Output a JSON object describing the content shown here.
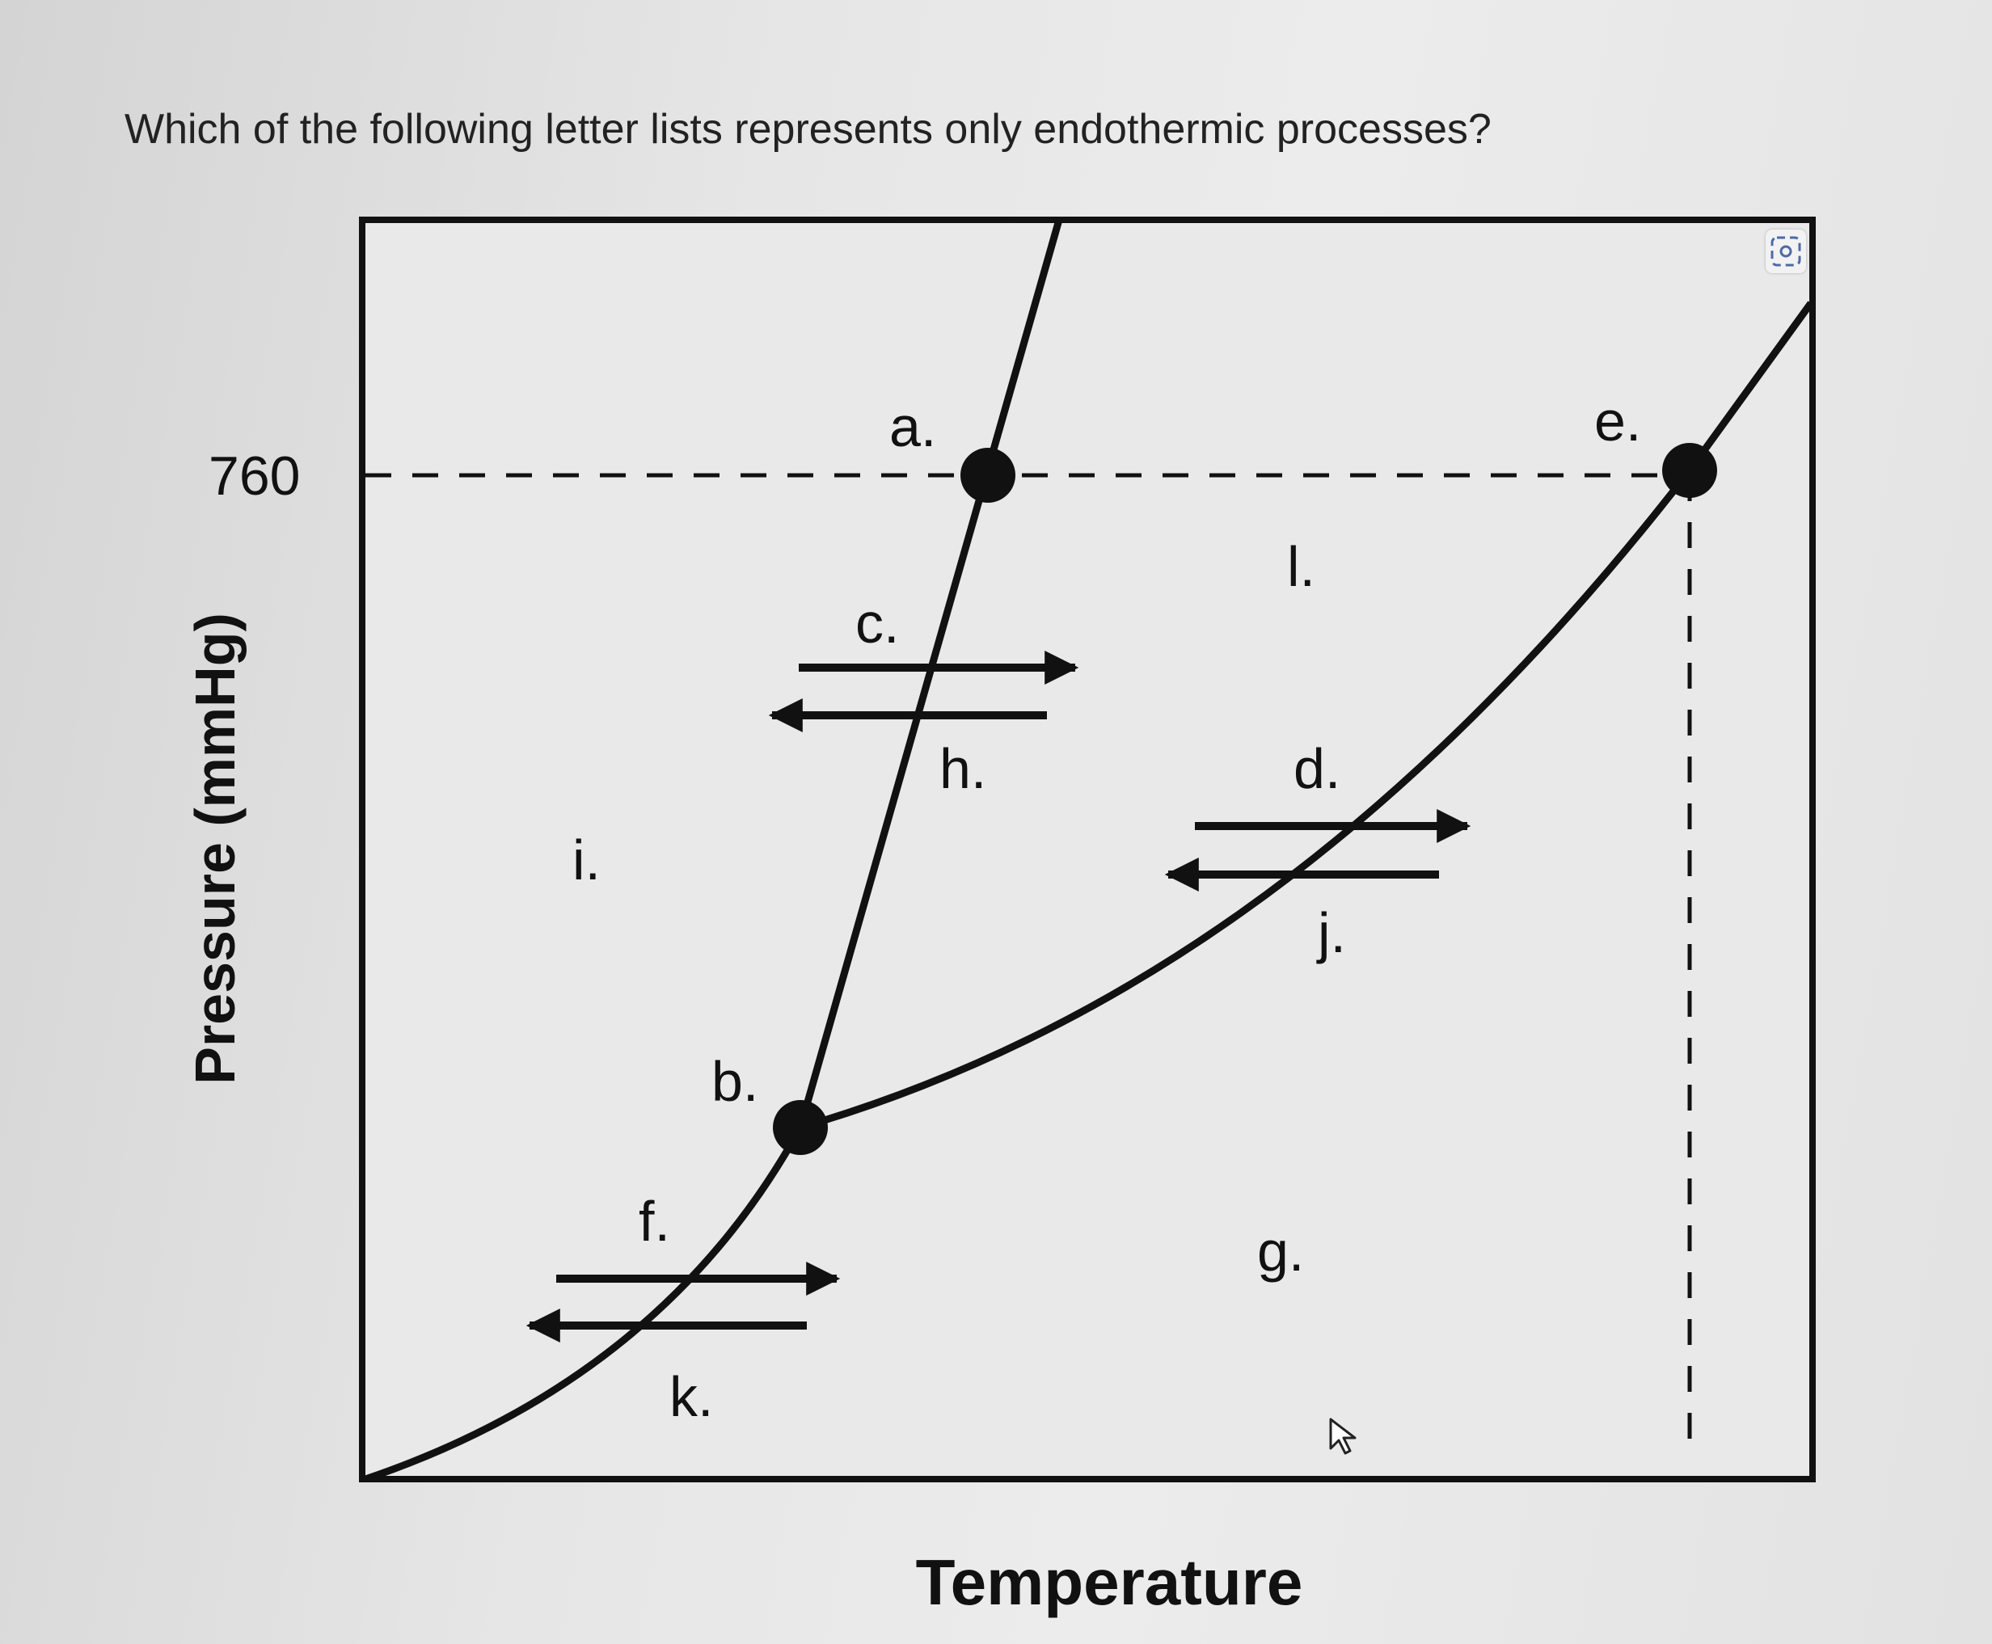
{
  "question": {
    "text": "Which of the following letter lists represents only endothermic processes?"
  },
  "diagram": {
    "y_axis_label": "Pressure (mmHg)",
    "x_axis_label": "Temperature",
    "y_tick_label": "760",
    "labels": {
      "a": "a.",
      "b": "b.",
      "c": "c.",
      "d": "d.",
      "e": "e.",
      "f": "f.",
      "g": "g.",
      "h": "h.",
      "i": "i.",
      "j": "j.",
      "k": "k.",
      "l": "l."
    },
    "colors": {
      "line": "#111111",
      "plot_background": "#e9e9e9"
    }
  },
  "icons": {
    "image_action": "camera-icon",
    "cursor": "mouse-cursor-icon"
  }
}
